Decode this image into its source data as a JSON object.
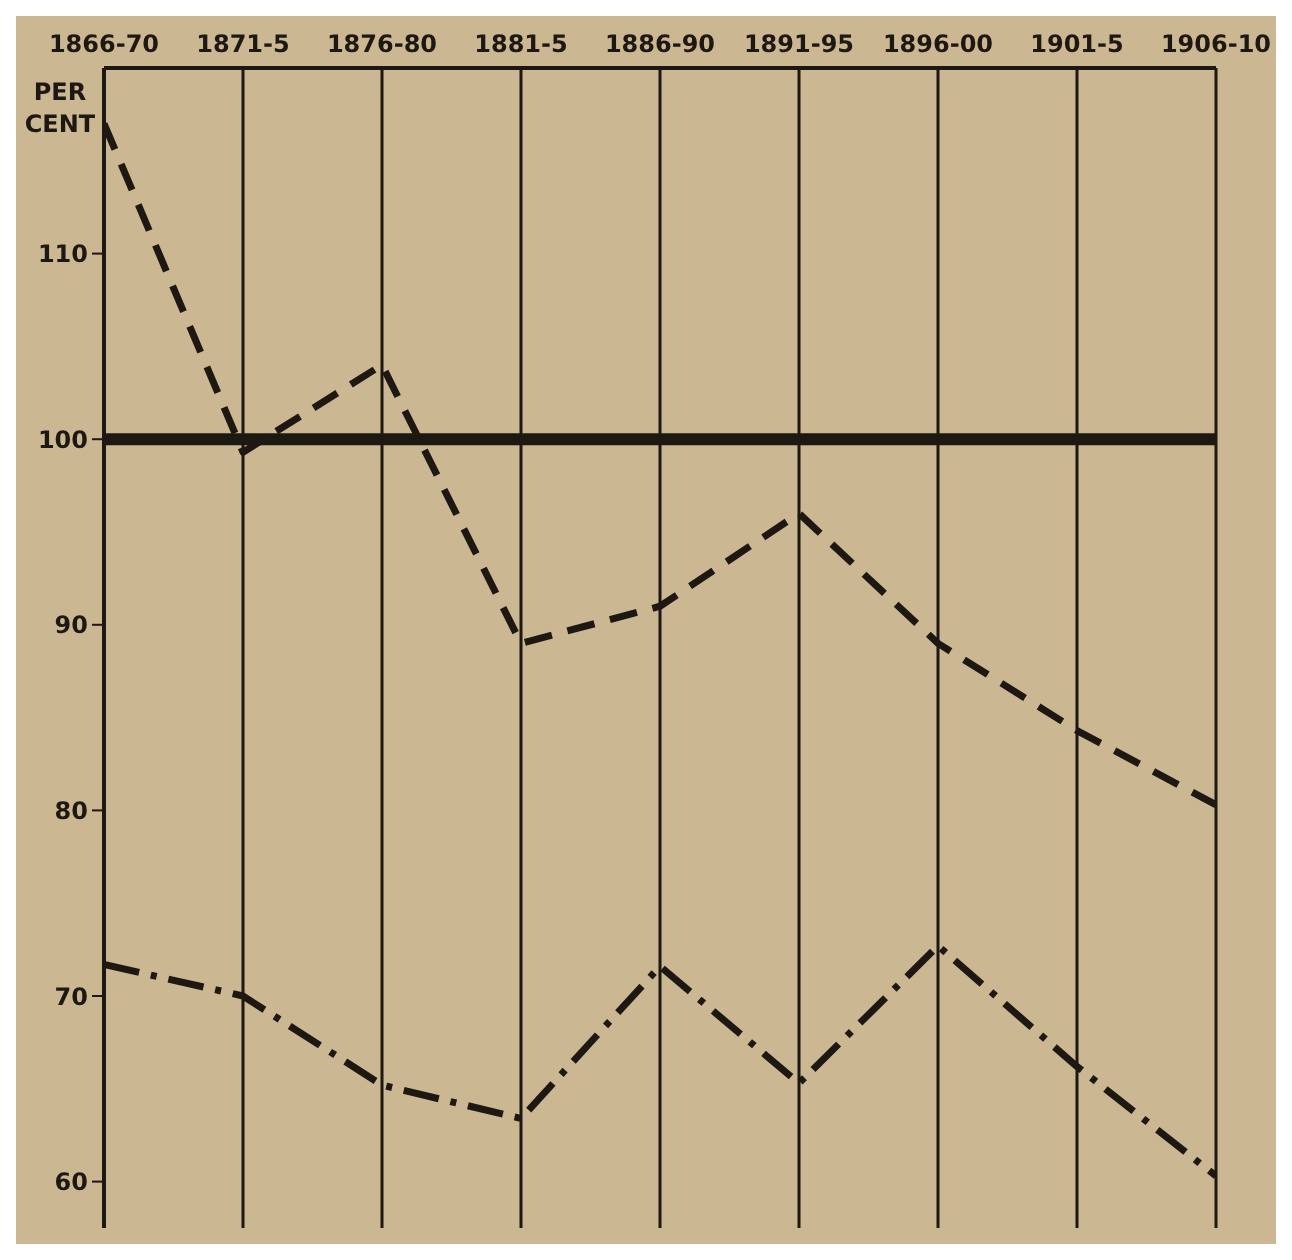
{
  "chart_data": {
    "type": "line",
    "ylabel": "PER CENT",
    "categories": [
      "1866-70",
      "1871-5",
      "1876-80",
      "1881-5",
      "1886-90",
      "1891-95",
      "1896-00",
      "1901-5",
      "1906-10"
    ],
    "series": [
      {
        "color": "#1e1812",
        "line_style": "dashed",
        "values": [
          117,
          99.3,
          104,
          89,
          91,
          96,
          89,
          84.3,
          80.3
        ]
      },
      {
        "color": "#1e1812",
        "line_style": "dashdot",
        "values": [
          71.7,
          70,
          65.2,
          63.4,
          71.6,
          65.3,
          72.7,
          66.2,
          60.3
        ]
      }
    ],
    "ylim": [
      57.5,
      120
    ],
    "yticks": [
      60,
      70,
      80,
      90,
      100,
      110
    ],
    "grid": "x",
    "marker": "none",
    "ref_lines": [
      {
        "axis": "y",
        "value": 100,
        "color": "#1e1812"
      }
    ]
  }
}
